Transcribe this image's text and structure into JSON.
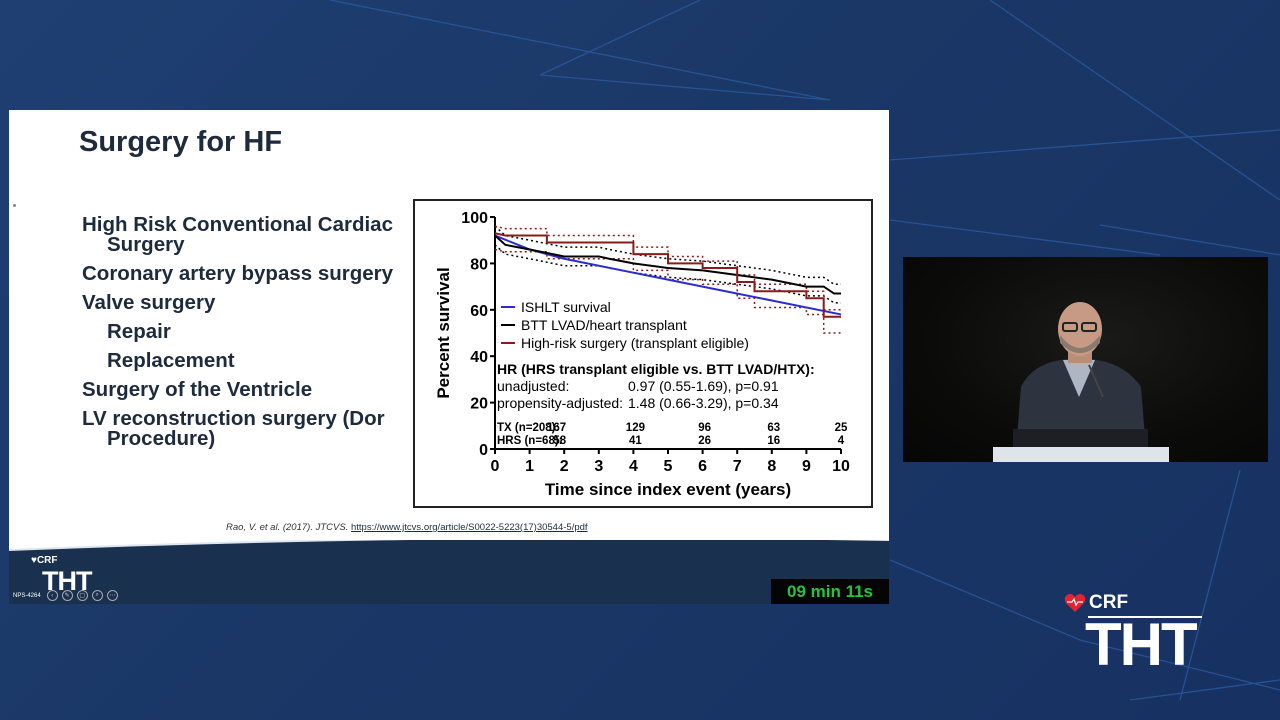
{
  "slide": {
    "title": "Surgery for HF",
    "bullets": [
      {
        "text": "High Risk Conventional Cardiac",
        "cont": "Surgery",
        "level": 1
      },
      {
        "text": "Coronary artery bypass surgery",
        "level": 1
      },
      {
        "text": "Valve surgery",
        "level": 1
      },
      {
        "text": "Repair",
        "level": 2
      },
      {
        "text": "Replacement",
        "level": 2
      },
      {
        "text": "Surgery of the Ventricle",
        "level": 1
      },
      {
        "text": "LV reconstruction surgery (Dor",
        "cont": "Procedure)",
        "level": 1
      }
    ],
    "citation": {
      "authors": "Rao, V. et al. (2017). ",
      "journal": "JTCVS.",
      "url": "https://www.jtcvs.org/article/S0022-5223(17)30544-5/pdf"
    }
  },
  "chart_data": {
    "type": "line",
    "title": "",
    "xlabel": "Time since index event (years)",
    "ylabel": "Percent survival",
    "xlim": [
      0,
      10
    ],
    "ylim": [
      0,
      100
    ],
    "x_ticks": [
      "0",
      "1",
      "2",
      "3",
      "4",
      "5",
      "6",
      "7",
      "8",
      "9",
      "10"
    ],
    "y_ticks": [
      "0",
      "20",
      "40",
      "60",
      "80",
      "100"
    ],
    "series": [
      {
        "name": "ISHLT survival",
        "color": "#2b2bd1",
        "points": [
          [
            0,
            92
          ],
          [
            1,
            86
          ],
          [
            2,
            82
          ],
          [
            4,
            76
          ],
          [
            6,
            70
          ],
          [
            8,
            64
          ],
          [
            10,
            58
          ]
        ]
      },
      {
        "name": "BTT LVAD/heart transplant",
        "color": "#000000",
        "points": [
          [
            0,
            92
          ],
          [
            0.3,
            88
          ],
          [
            1,
            86
          ],
          [
            2,
            83
          ],
          [
            3,
            83
          ],
          [
            3.3,
            82
          ],
          [
            4,
            80
          ],
          [
            5,
            78
          ],
          [
            6,
            77
          ],
          [
            7,
            75
          ],
          [
            8,
            73
          ],
          [
            9,
            70
          ],
          [
            9.5,
            70
          ],
          [
            9.8,
            67
          ],
          [
            10,
            67
          ]
        ]
      },
      {
        "name": "High-risk surgery (transplant eligible)",
        "color": "#8b1a1a",
        "points": [
          [
            0,
            93
          ],
          [
            0.3,
            92
          ],
          [
            1.5,
            92
          ],
          [
            1.5,
            89
          ],
          [
            4,
            89
          ],
          [
            4,
            84
          ],
          [
            5,
            84
          ],
          [
            5,
            80
          ],
          [
            6,
            80
          ],
          [
            6,
            78
          ],
          [
            7,
            78
          ],
          [
            7,
            72
          ],
          [
            7.5,
            72
          ],
          [
            7.5,
            68
          ],
          [
            9,
            68
          ],
          [
            9,
            65
          ],
          [
            9.5,
            65
          ],
          [
            9.5,
            57
          ],
          [
            10,
            57
          ]
        ]
      }
    ],
    "hr_title": "HR (HRS transplant eligible vs. BTT LVAD/HTX):",
    "hr_rows": [
      {
        "label": "unadjusted:",
        "value": "0.97 (0.55-1.69), p=0.91"
      },
      {
        "label": "propensity-adjusted:",
        "value": "1.48 (0.66-3.29), p=0.34"
      }
    ],
    "risk_table": [
      {
        "label": "TX (n=208):",
        "values": [
          "167",
          "129",
          "96",
          "63",
          "25"
        ]
      },
      {
        "label": "HRS (n=68):",
        "values": [
          "58",
          "41",
          "26",
          "16",
          "4"
        ]
      }
    ],
    "risk_x": [
      2,
      4,
      6,
      8,
      10
    ],
    "legend_position": "center-left"
  },
  "footer": {
    "crf": "CRF",
    "tht": "THT",
    "slide_number": "NPS-4264",
    "timer": "09 min 11s"
  },
  "brand": {
    "crf": "CRF",
    "tht": "THT"
  },
  "colors": {
    "background": "#1a3766",
    "slide_text": "#1d2b3c",
    "timer_text": "#25c43a",
    "brand_heart": "#e02434"
  }
}
